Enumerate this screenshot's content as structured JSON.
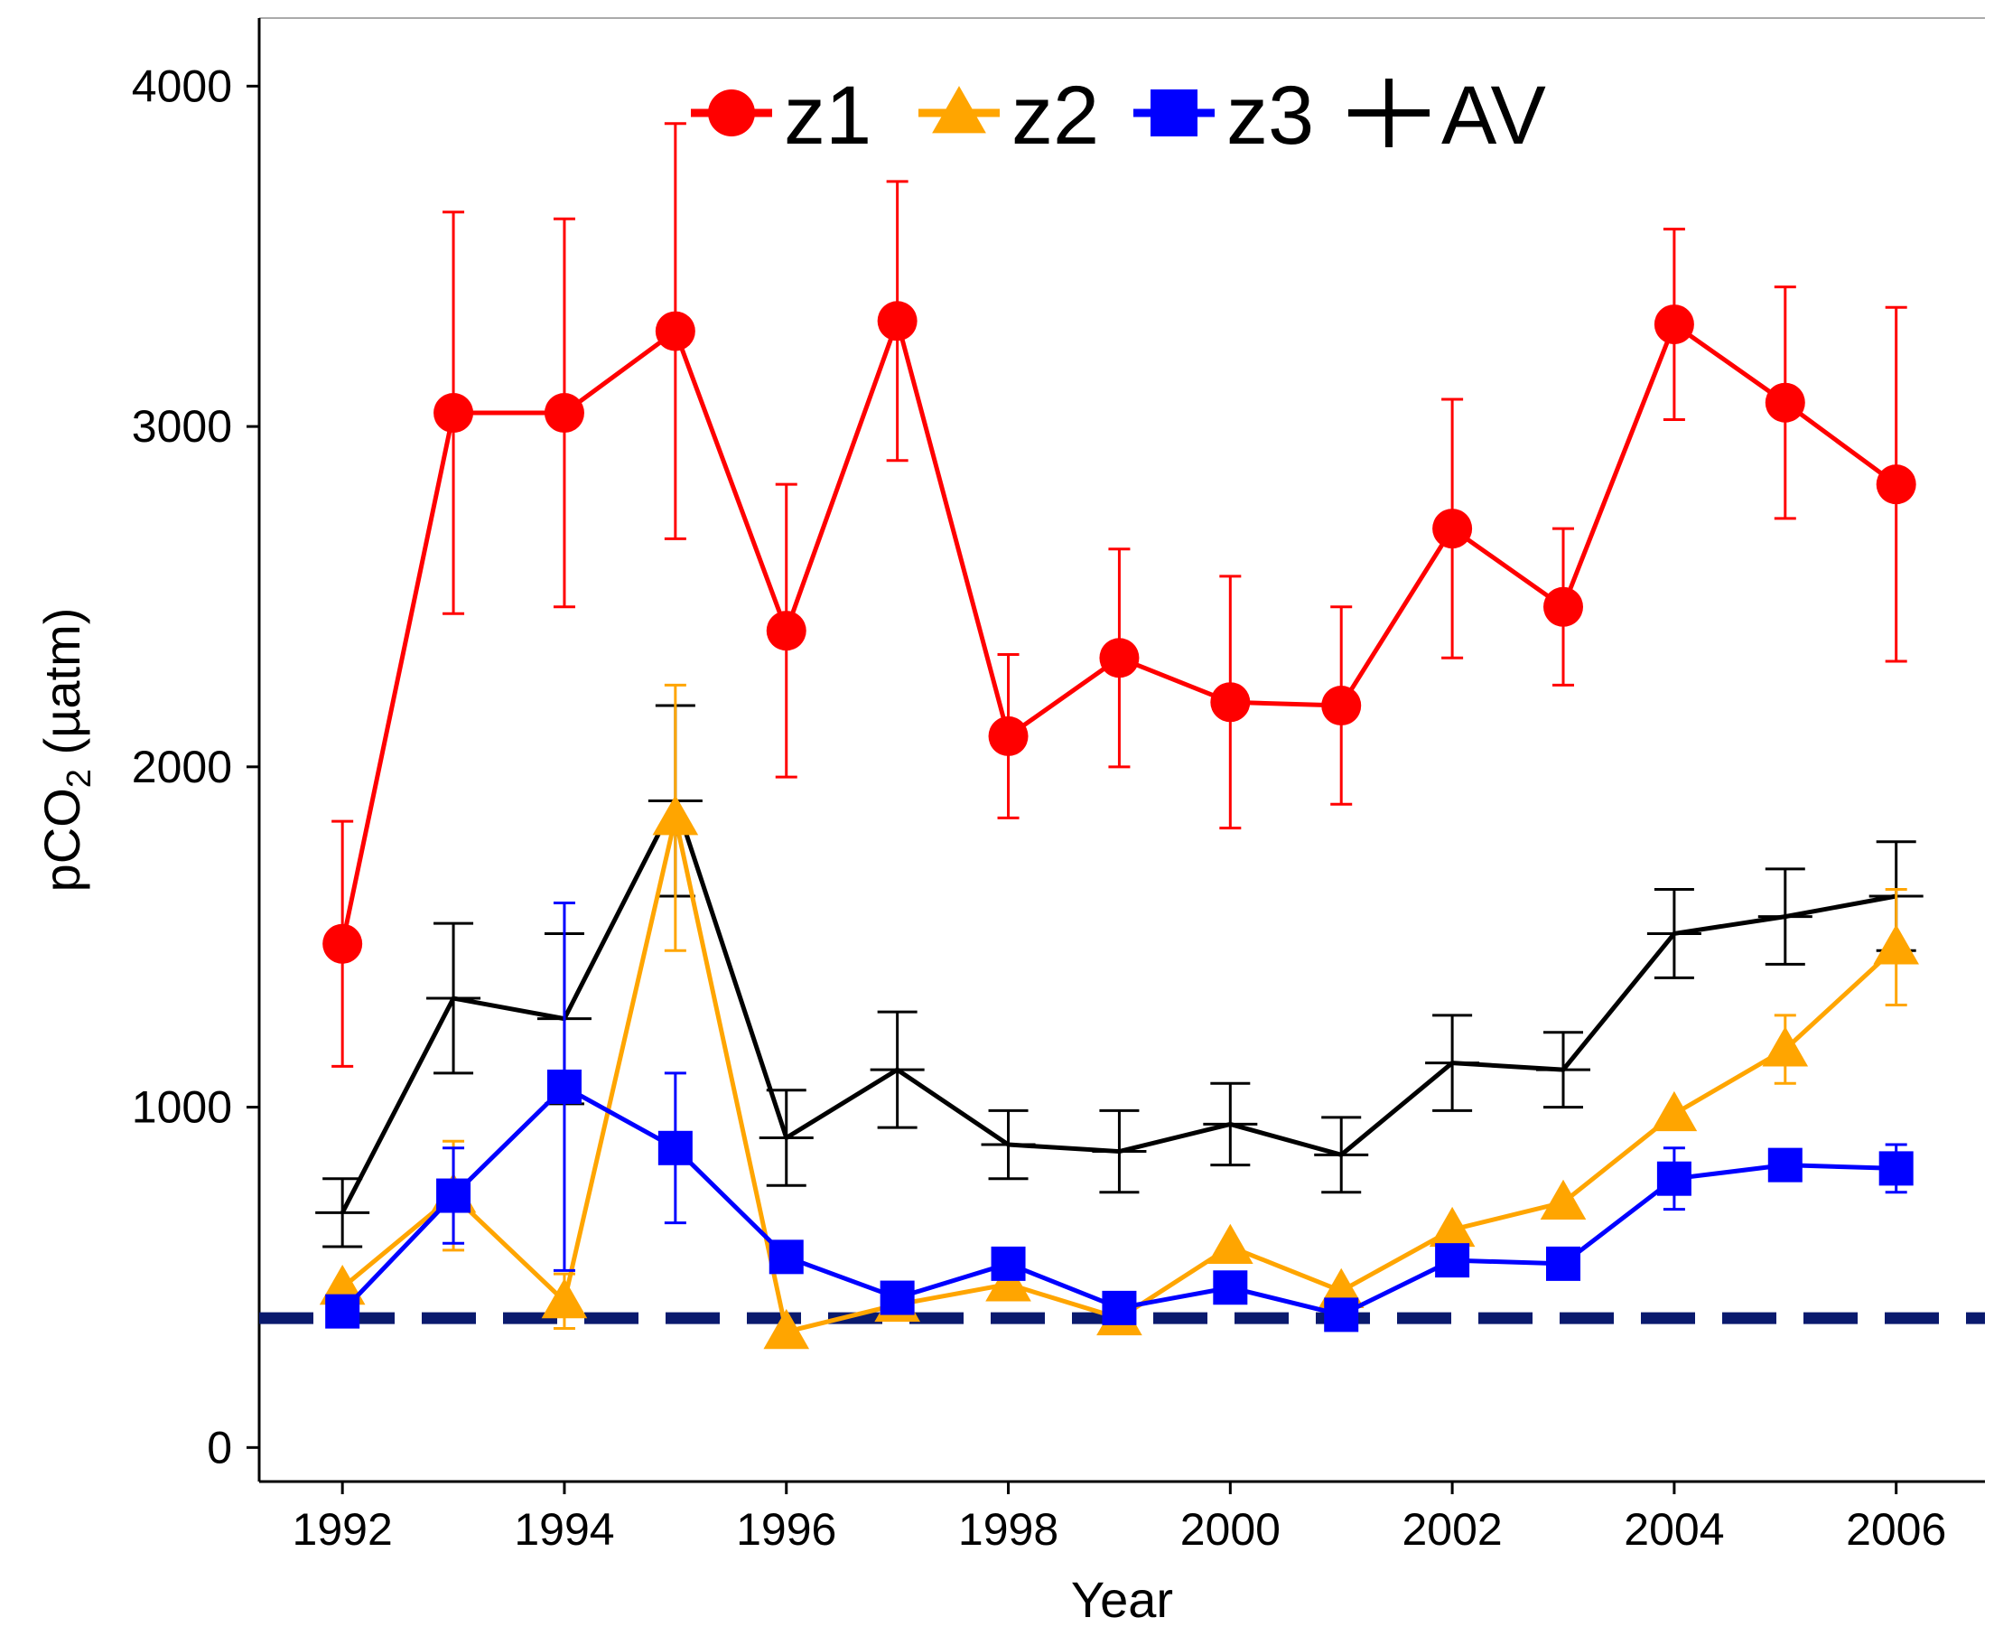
{
  "chart_data": {
    "type": "line",
    "title": "",
    "xlabel": "Year",
    "ylabel": {
      "prefix": "pCO",
      "subscript": "2",
      "suffix": " (µatm)"
    },
    "x": [
      1992,
      1993,
      1994,
      1995,
      1996,
      1997,
      1998,
      1999,
      2000,
      2001,
      2002,
      2003,
      2004,
      2005,
      2006
    ],
    "xticks": [
      "1992",
      "1994",
      "1996",
      "1998",
      "2000",
      "2002",
      "2004",
      "2006"
    ],
    "yticks": [
      "0",
      "1000",
      "2000",
      "3000",
      "4000"
    ],
    "xlim": [
      1991.25,
      2006.8
    ],
    "ylim": [
      -100,
      4200
    ],
    "grid": false,
    "legend_position": "top",
    "reference_line": {
      "y": 380,
      "style": "dashed",
      "color": "#0a1a6e"
    },
    "series": [
      {
        "name": "z1",
        "marker": "circle",
        "color": "#ff0000",
        "values": [
          1480,
          3040,
          3040,
          3280,
          2400,
          3310,
          2090,
          2320,
          2190,
          2180,
          2700,
          2470,
          3300,
          3070,
          2830
        ],
        "errors": [
          360,
          590,
          570,
          610,
          430,
          410,
          240,
          320,
          370,
          290,
          380,
          230,
          280,
          340,
          520
        ]
      },
      {
        "name": "z2",
        "marker": "triangle",
        "color": "#ffa500",
        "values": [
          470,
          740,
          430,
          1850,
          340,
          420,
          480,
          380,
          590,
          460,
          640,
          720,
          980,
          1170,
          1470
        ],
        "errors": [
          0,
          160,
          80,
          390,
          0,
          0,
          0,
          0,
          0,
          0,
          0,
          0,
          0,
          100,
          170
        ]
      },
      {
        "name": "z3",
        "marker": "square",
        "color": "#0000ff",
        "values": [
          400,
          740,
          1060,
          880,
          560,
          440,
          540,
          410,
          470,
          390,
          550,
          540,
          790,
          830,
          820
        ],
        "errors": [
          0,
          140,
          540,
          220,
          0,
          0,
          0,
          0,
          0,
          0,
          0,
          0,
          90,
          0,
          70
        ]
      },
      {
        "name": "AV",
        "marker": "plus",
        "color": "#000000",
        "values": [
          690,
          1320,
          1260,
          1900,
          910,
          1110,
          890,
          870,
          950,
          860,
          1130,
          1110,
          1510,
          1560,
          1620
        ],
        "errors": [
          100,
          220,
          250,
          280,
          140,
          170,
          100,
          120,
          120,
          110,
          140,
          110,
          130,
          140,
          160
        ]
      }
    ]
  }
}
